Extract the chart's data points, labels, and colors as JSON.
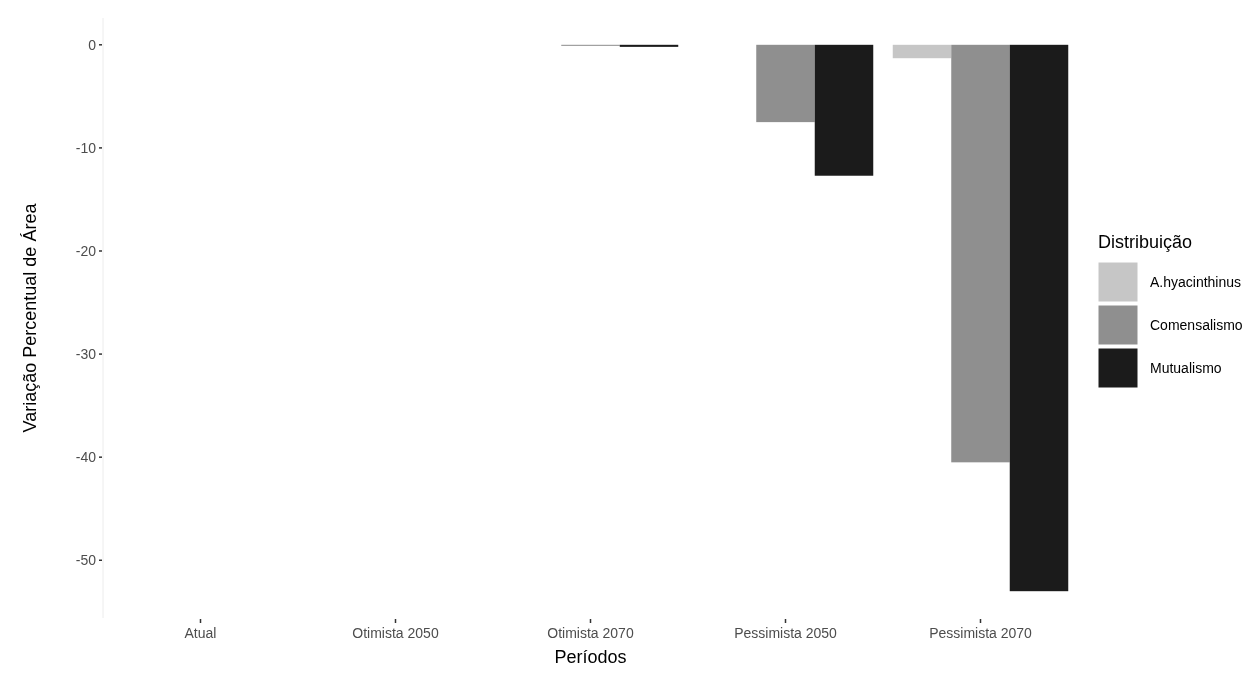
{
  "chart_data": {
    "type": "bar",
    "xlabel": "Períodos",
    "ylabel": "Variação Percentual de Área",
    "legend_title": "Distribuição",
    "categories": [
      "Atual",
      "Otimista 2050",
      "Otimista 2070",
      "Pessimista 2050",
      "Pessimista 2070"
    ],
    "series": [
      {
        "name": "A.hyacinthinus",
        "color": "#c6c6c6",
        "values": [
          0,
          0,
          0,
          0,
          -1.3
        ]
      },
      {
        "name": "Comensalismo",
        "color": "#8f8f8f",
        "values": [
          0,
          0,
          -0.1,
          -7.5,
          -40.5
        ]
      },
      {
        "name": "Mutualismo",
        "color": "#1b1b1b",
        "values": [
          0,
          0,
          -0.2,
          -12.7,
          -53
        ]
      }
    ],
    "ylim": [
      -55.6,
      2.6
    ],
    "yticks": [
      0,
      -10,
      -20,
      -30,
      -40,
      -50
    ],
    "grid": false,
    "legend": "right"
  }
}
